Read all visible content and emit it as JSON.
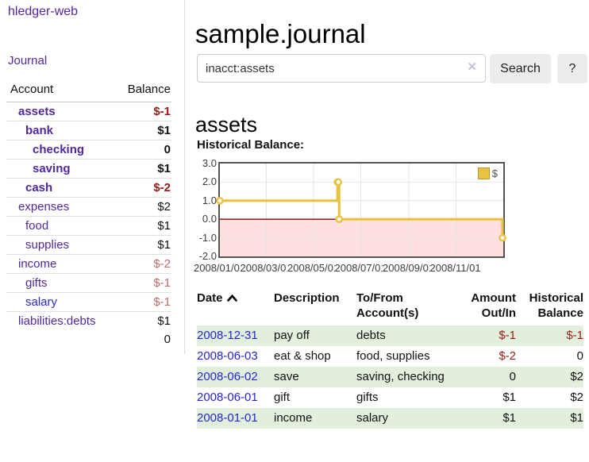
{
  "sidebar": {
    "brand": "hledger-web",
    "journal_link": "Journal",
    "accounts": {
      "headers": {
        "account": "Account",
        "balance": "Balance"
      },
      "rows": [
        {
          "name": "assets",
          "depth": 1,
          "emph": true,
          "color": "purple",
          "balance": "$-1",
          "bal": "neg-strong"
        },
        {
          "name": "bank",
          "depth": 2,
          "emph": true,
          "color": "purple",
          "balance": "$1",
          "bal": "pos"
        },
        {
          "name": "checking",
          "depth": 3,
          "emph": true,
          "color": "purple",
          "balance": "0",
          "bal": "pos"
        },
        {
          "name": "saving",
          "depth": 3,
          "emph": true,
          "color": "purple",
          "balance": "$1",
          "bal": "pos"
        },
        {
          "name": "cash",
          "depth": 2,
          "emph": true,
          "color": "purple",
          "balance": "$-2",
          "bal": "neg-strong"
        },
        {
          "name": "expenses",
          "depth": 1,
          "emph": false,
          "color": "purple",
          "balance": "$2",
          "bal": "pos"
        },
        {
          "name": "food",
          "depth": 2,
          "emph": false,
          "color": "purple",
          "balance": "$1",
          "bal": "pos"
        },
        {
          "name": "supplies",
          "depth": 2,
          "emph": false,
          "color": "purple",
          "balance": "$1",
          "bal": "pos"
        },
        {
          "name": "income",
          "depth": 1,
          "emph": false,
          "color": "purple",
          "balance": "$-2",
          "bal": "neg-light"
        },
        {
          "name": "gifts",
          "depth": 2,
          "emph": false,
          "color": "purple",
          "balance": "$-1",
          "bal": "neg-light"
        },
        {
          "name": "salary",
          "depth": 2,
          "emph": false,
          "color": "blue",
          "balance": "$-1",
          "bal": "neg-light"
        },
        {
          "name": "liabilities:debts",
          "depth": 1,
          "emph": false,
          "color": "purple",
          "balance": "$1",
          "bal": "pos"
        }
      ],
      "total": "0"
    }
  },
  "main": {
    "title": "sample.journal",
    "search": {
      "value": "inacct:assets",
      "clear_icon": "✕",
      "button": "Search",
      "help_button": "?"
    },
    "account_heading": "assets",
    "chart_label": "Historical Balance:"
  },
  "chart_data": {
    "type": "line",
    "title": "Historical Balance",
    "step": true,
    "series": [
      {
        "name": "$",
        "color": "#e8c240",
        "points": [
          {
            "date": "2008-01-01",
            "value": 1
          },
          {
            "date": "2008-06-01",
            "value": 2
          },
          {
            "date": "2008-06-02",
            "value": 2
          },
          {
            "date": "2008-06-03",
            "value": 0
          },
          {
            "date": "2008-12-31",
            "value": -1
          }
        ]
      }
    ],
    "xlim": [
      "2008-01-01",
      "2009-01-01"
    ],
    "ylim": [
      -2,
      3
    ],
    "x_ticks": [
      "2008/01/01",
      "2008/03/01",
      "2008/05/01",
      "2008/07/01",
      "2008/09/01",
      "2008/11/01"
    ],
    "y_ticks": [
      "3.0",
      "2.0",
      "1.0",
      "0.0",
      "-1.0",
      "-2.0"
    ],
    "grid": true,
    "legend": {
      "label": "$",
      "position": "top-right"
    },
    "negative_region_color": "#ffdfdf",
    "zero_line_color": "#8b0000",
    "gridline_color": "#e4e4e4",
    "border_color": "#545454"
  },
  "register": {
    "headers": {
      "date": "Date",
      "description": "Description",
      "accounts": "To/From Account(s)",
      "amount": "Amount Out/In",
      "balance": "Historical Balance"
    },
    "rows": [
      {
        "date": "2008-12-31",
        "description": "pay off",
        "accounts": "debts",
        "amount": "$-1",
        "balance": "$-1",
        "amount_neg": true,
        "balance_neg": true
      },
      {
        "date": "2008-06-03",
        "description": "eat & shop",
        "accounts": "food, supplies",
        "amount": "$-2",
        "balance": "0",
        "amount_neg": true,
        "balance_neg": false
      },
      {
        "date": "2008-06-02",
        "description": "save",
        "accounts": "saving, checking",
        "amount": "0",
        "balance": "$2",
        "amount_neg": false,
        "balance_neg": false
      },
      {
        "date": "2008-06-01",
        "description": "gift",
        "accounts": "gifts",
        "amount": "$1",
        "balance": "$2",
        "amount_neg": false,
        "balance_neg": false
      },
      {
        "date": "2008-01-01",
        "description": "income",
        "accounts": "salary",
        "amount": "$1",
        "balance": "$1",
        "amount_neg": false,
        "balance_neg": false
      }
    ]
  },
  "colors": {
    "link_purple": "#53279c",
    "link_blue": "#2525d7",
    "negative_strong": "#9b1c17",
    "negative_light": "#c1686a",
    "row_green": "#e2efdc",
    "button_bg": "#ececec",
    "series_gold": "#e8c240"
  }
}
